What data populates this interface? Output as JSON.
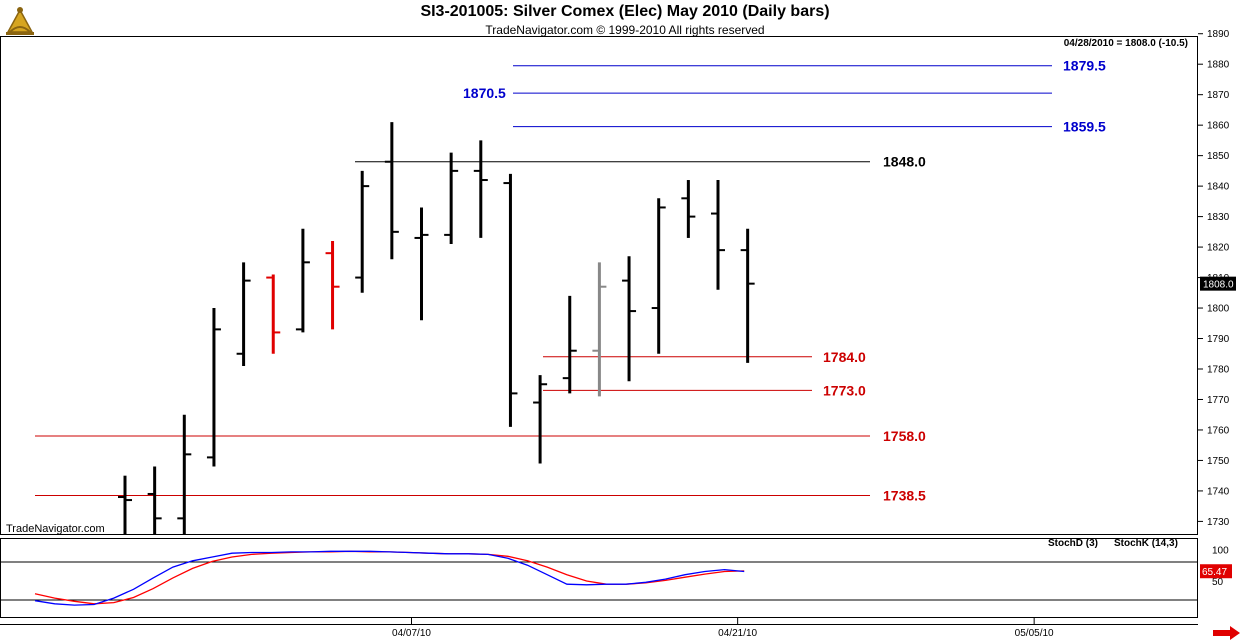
{
  "header": {
    "title": "SI3-201005:  Silver Comex (Elec) May 2010  (Daily bars)",
    "subtitle": "TradeNavigator.com © 1999-2010 All rights reserved",
    "status": "04/28/2010 = 1808.0 (-10.5)",
    "watermark": "TradeNavigator.com"
  },
  "indicator": {
    "legend_d": "StochD (3)",
    "legend_k": "StochK (14,3)",
    "color_d": "#ff0000",
    "color_k": "#0000ff",
    "ticks": [
      "100",
      "50"
    ],
    "value_label": "65.47",
    "ylim": [
      0,
      100
    ],
    "levels": [
      80,
      20
    ],
    "k_values": [
      19,
      14,
      12,
      13,
      23,
      37,
      55,
      72,
      82,
      88,
      94,
      95,
      95,
      96,
      96,
      97,
      97,
      97,
      96,
      95,
      94,
      93,
      93,
      92,
      86,
      75,
      60,
      45,
      44,
      45,
      45,
      48,
      53,
      60,
      65,
      68,
      65
    ],
    "d_values": [
      30,
      23,
      18,
      14,
      16,
      24,
      38,
      55,
      70,
      81,
      88,
      92,
      94,
      95,
      96,
      96,
      97,
      96,
      96,
      95,
      94,
      93,
      93,
      92,
      89,
      82,
      72,
      60,
      50,
      45,
      45,
      47,
      51,
      56,
      61,
      65,
      66
    ]
  },
  "chart_data": {
    "type": "bar",
    "title": "SI3-201005:  Silver Comex (Elec) May 2010  (Daily bars)",
    "series_name": "Silver Comex (Elec) May 2010",
    "xlabel": "",
    "ylabel": "",
    "ylim": [
      1725,
      1893
    ],
    "y_ticks": [
      1730,
      1740,
      1750,
      1760,
      1770,
      1780,
      1790,
      1800,
      1810,
      1820,
      1830,
      1840,
      1850,
      1860,
      1870,
      1880,
      1890
    ],
    "x_ticks": [
      {
        "label": "04/07/10",
        "bar": 10
      },
      {
        "label": "04/21/10",
        "bar": 21
      },
      {
        "label": "05/05/10",
        "bar": 31
      }
    ],
    "last_price_label": "1808.0",
    "colors": {
      "up": "#000000",
      "red": "#e00000",
      "gray": "#888888",
      "resistance": "#0000cc",
      "support": "#cc0000",
      "pivot": "#000000"
    },
    "bars": [
      {
        "o": 1738,
        "h": 1745,
        "l": 1722,
        "c": 1737,
        "color": "black"
      },
      {
        "o": 1739,
        "h": 1748,
        "l": 1722,
        "c": 1731,
        "color": "black"
      },
      {
        "o": 1731,
        "h": 1765,
        "l": 1722,
        "c": 1752,
        "color": "black"
      },
      {
        "o": 1751,
        "h": 1800,
        "l": 1748,
        "c": 1793,
        "color": "black"
      },
      {
        "o": 1785,
        "h": 1815,
        "l": 1781,
        "c": 1809,
        "color": "black"
      },
      {
        "o": 1810,
        "h": 1811,
        "l": 1785,
        "c": 1792,
        "color": "red"
      },
      {
        "o": 1793,
        "h": 1826,
        "l": 1792,
        "c": 1815,
        "color": "black"
      },
      {
        "o": 1818,
        "h": 1822,
        "l": 1793,
        "c": 1807,
        "color": "red"
      },
      {
        "o": 1810,
        "h": 1845,
        "l": 1805,
        "c": 1840,
        "color": "black"
      },
      {
        "o": 1848,
        "h": 1861,
        "l": 1816,
        "c": 1825,
        "color": "black"
      },
      {
        "o": 1823,
        "h": 1833,
        "l": 1796,
        "c": 1824,
        "color": "black"
      },
      {
        "o": 1824,
        "h": 1851,
        "l": 1821,
        "c": 1845,
        "color": "black"
      },
      {
        "o": 1845,
        "h": 1855,
        "l": 1823,
        "c": 1842,
        "color": "black"
      },
      {
        "o": 1841,
        "h": 1844,
        "l": 1761,
        "c": 1772,
        "color": "black"
      },
      {
        "o": 1769,
        "h": 1778,
        "l": 1749,
        "c": 1775,
        "color": "black"
      },
      {
        "o": 1777,
        "h": 1804,
        "l": 1772,
        "c": 1786,
        "color": "black"
      },
      {
        "o": 1786,
        "h": 1815,
        "l": 1771,
        "c": 1807,
        "color": "gray"
      },
      {
        "o": 1809,
        "h": 1817,
        "l": 1776,
        "c": 1799,
        "color": "black"
      },
      {
        "o": 1800,
        "h": 1836,
        "l": 1785,
        "c": 1833,
        "color": "black"
      },
      {
        "o": 1836,
        "h": 1842,
        "l": 1823,
        "c": 1830,
        "color": "black"
      },
      {
        "o": 1831,
        "h": 1842,
        "l": 1806,
        "c": 1819,
        "color": "black"
      },
      {
        "o": 1819,
        "h": 1826,
        "l": 1782,
        "c": 1808,
        "color": "black"
      }
    ],
    "levels": [
      {
        "label": "1879.5",
        "value": 1879.5,
        "kind": "resistance"
      },
      {
        "label": "1870.5",
        "value": 1870.5,
        "kind": "resistance"
      },
      {
        "label": "1859.5",
        "value": 1859.5,
        "kind": "resistance"
      },
      {
        "label": "1848.0",
        "value": 1848.0,
        "kind": "pivot"
      },
      {
        "label": "1784.0",
        "value": 1784.0,
        "kind": "support"
      },
      {
        "label": "1773.0",
        "value": 1773.0,
        "kind": "support"
      },
      {
        "label": "1758.0",
        "value": 1758.0,
        "kind": "support"
      },
      {
        "label": "1738.5",
        "value": 1738.5,
        "kind": "support"
      }
    ]
  }
}
